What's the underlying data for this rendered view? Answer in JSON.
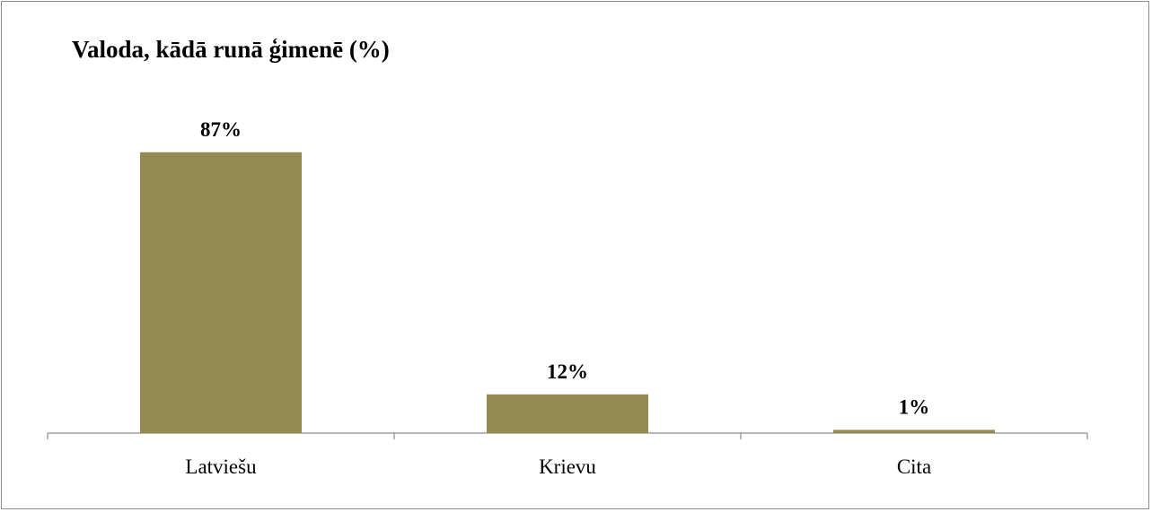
{
  "chart_data": {
    "type": "bar",
    "title": "Valoda, kādā runā ģimenē (%)",
    "categories": [
      "Latviešu",
      "Krievu",
      "Cita"
    ],
    "values": [
      87,
      12,
      1
    ],
    "data_labels": [
      "87%",
      "12%",
      "1%"
    ],
    "unit": "%",
    "xlabel": "",
    "ylabel": "",
    "ylim": [
      0,
      100
    ],
    "grid": false,
    "legend": "none",
    "bar_color": "#968a53"
  }
}
